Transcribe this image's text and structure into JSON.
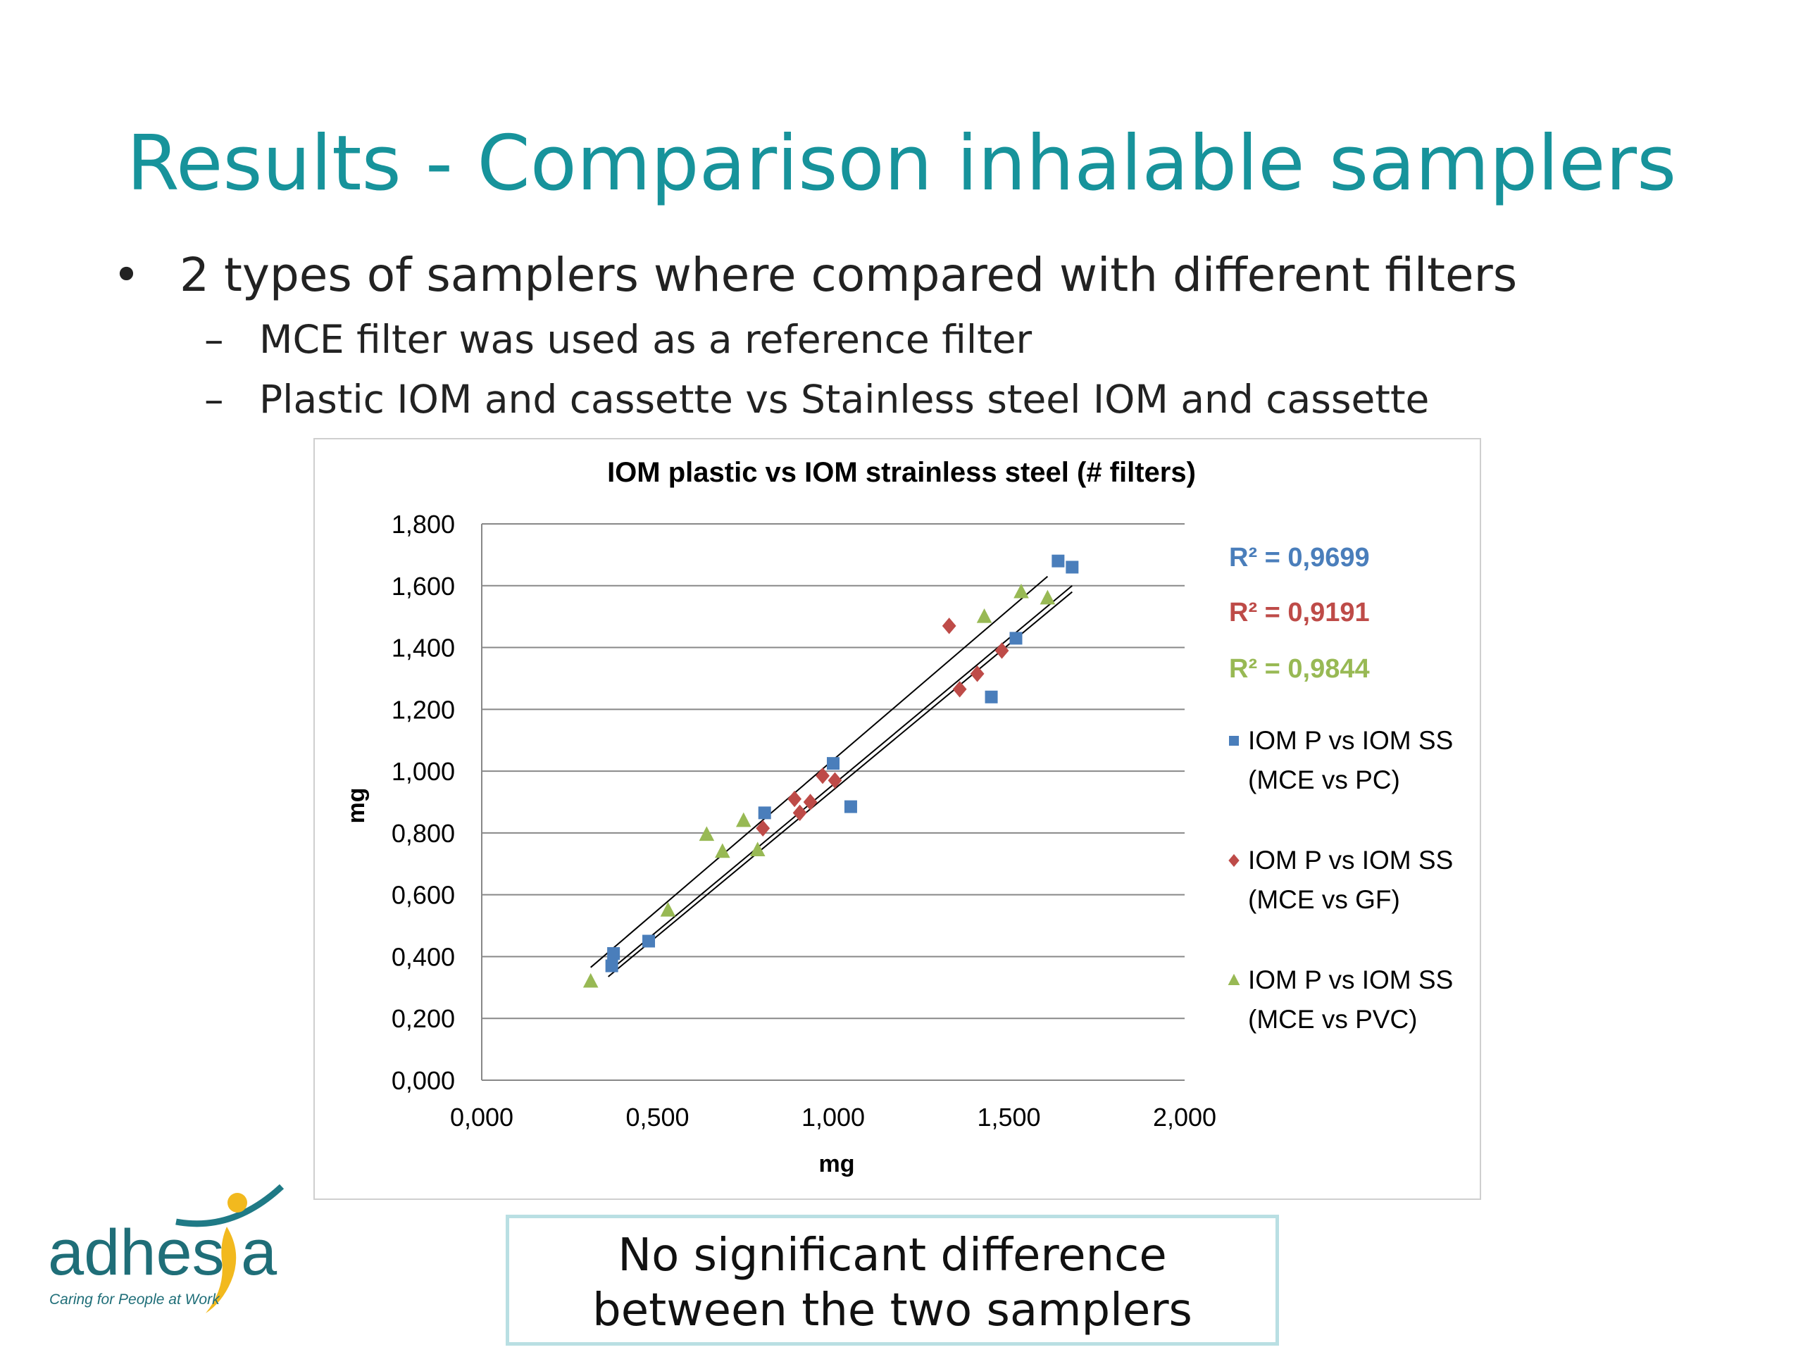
{
  "slide": {
    "title": "Results - Comparison inhalable samplers",
    "bullet_main": "2 types of samplers where compared with different filters",
    "sub_bullets": [
      "MCE filter was used as a reference filter",
      "Plastic IOM and cassette vs Stainless steel IOM and cassette"
    ],
    "conclusion_line1": "No significant difference",
    "conclusion_line2": "between the two samplers",
    "bullet_symbol": "•",
    "dash_symbol": "–"
  },
  "logo": {
    "name": "adhesia",
    "tagline": "Caring for People at Work",
    "colors": {
      "text": "#1f6e78",
      "figure": "#f2b91e",
      "arc": "#1f7a86"
    }
  },
  "chart_data": {
    "type": "scatter",
    "title": "IOM plastic vs IOM strainless steel (# filters)",
    "xlabel": "mg",
    "ylabel": "mg",
    "xlim": [
      0,
      2
    ],
    "ylim": [
      0,
      1.8
    ],
    "xticks": [
      0,
      0.5,
      1,
      1.5,
      2
    ],
    "yticks": [
      0,
      0.2,
      0.4,
      0.6,
      0.8,
      1.0,
      1.2,
      1.4,
      1.6,
      1.8
    ],
    "xtick_labels": [
      "0,000",
      "0,500",
      "1,000",
      "1,500",
      "2,000"
    ],
    "ytick_labels": [
      "0,000",
      "0,200",
      "0,400",
      "0,600",
      "0,800",
      "1,000",
      "1,200",
      "1,400",
      "1,600",
      "1,800"
    ],
    "grid": true,
    "legend_position": "right",
    "series": [
      {
        "name": "IOM P vs IOM SS (MCE vs PC)",
        "legend_line1": "IOM P vs IOM SS",
        "legend_line2": "(MCE vs PC)",
        "marker": "square",
        "color": "#4a7ebb",
        "r2_label": "R² = 0,9699",
        "points": [
          [
            0.37,
            0.37
          ],
          [
            0.375,
            0.41
          ],
          [
            0.475,
            0.45
          ],
          [
            0.805,
            0.865
          ],
          [
            1.0,
            1.025
          ],
          [
            1.05,
            0.885
          ],
          [
            1.45,
            1.24
          ],
          [
            1.52,
            1.43
          ],
          [
            1.64,
            1.68
          ],
          [
            1.68,
            1.66
          ]
        ],
        "trend": [
          [
            0.37,
            0.36
          ],
          [
            1.68,
            1.6
          ]
        ]
      },
      {
        "name": "IOM P vs IOM SS (MCE vs GF)",
        "legend_line1": "IOM P vs IOM SS",
        "legend_line2": "(MCE vs GF)",
        "marker": "diamond",
        "color": "#be4b48",
        "r2_label": "R² = 0,9191",
        "points": [
          [
            0.8,
            0.815
          ],
          [
            0.89,
            0.91
          ],
          [
            0.905,
            0.865
          ],
          [
            0.935,
            0.9
          ],
          [
            0.97,
            0.985
          ],
          [
            1.005,
            0.97
          ],
          [
            1.33,
            1.47
          ],
          [
            1.36,
            1.265
          ],
          [
            1.41,
            1.315
          ],
          [
            1.48,
            1.39
          ]
        ],
        "trend": [
          [
            0.36,
            0.335
          ],
          [
            1.68,
            1.58
          ]
        ]
      },
      {
        "name": "IOM P vs IOM SS (MCE vs PVC)",
        "legend_line1": "IOM P vs IOM SS",
        "legend_line2": "(MCE vs PVC)",
        "marker": "triangle",
        "color": "#98b954",
        "r2_label": "R² = 0,9844",
        "points": [
          [
            0.31,
            0.32
          ],
          [
            0.53,
            0.55
          ],
          [
            0.64,
            0.795
          ],
          [
            0.685,
            0.74
          ],
          [
            0.745,
            0.84
          ],
          [
            0.785,
            0.745
          ],
          [
            1.43,
            1.5
          ],
          [
            1.535,
            1.58
          ],
          [
            1.61,
            1.56
          ]
        ],
        "trend": [
          [
            0.31,
            0.365
          ],
          [
            1.61,
            1.63
          ]
        ]
      }
    ]
  }
}
